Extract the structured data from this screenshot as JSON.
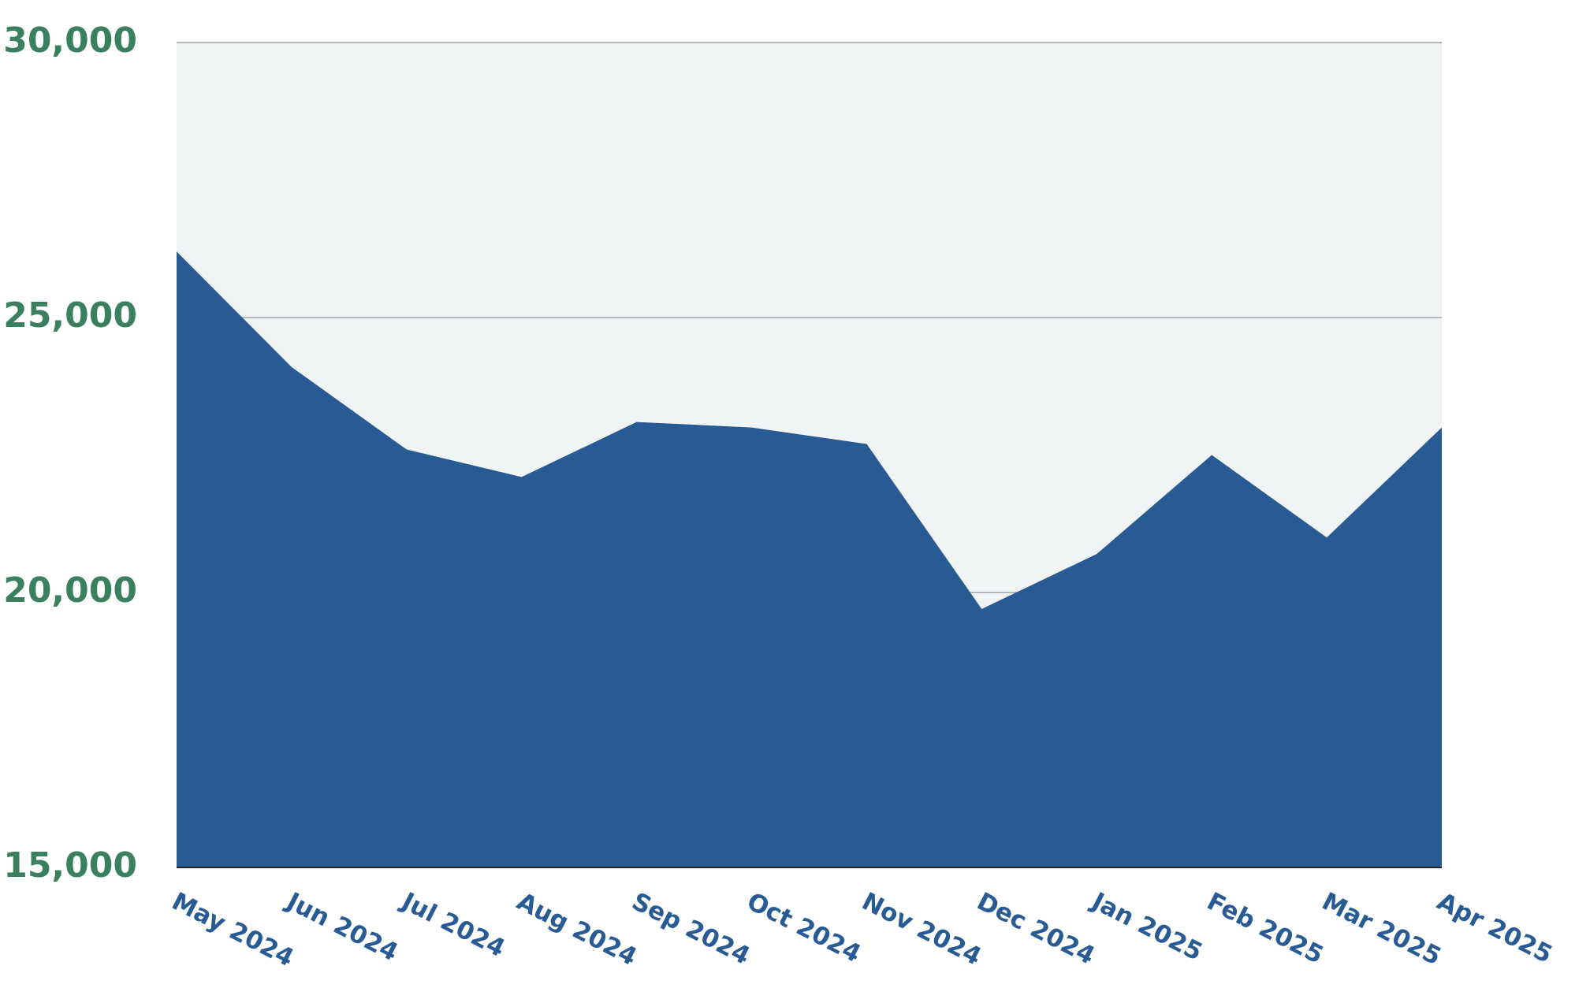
{
  "chart_data": {
    "type": "area",
    "categories": [
      "May 2024",
      "Jun 2024",
      "Jul 2024",
      "Aug 2024",
      "Sep 2024",
      "Oct 2024",
      "Nov 2024",
      "Dec 2024",
      "Jan 2025",
      "Feb 2025",
      "Mar 2025",
      "Apr 2025"
    ],
    "values": [
      26200,
      24100,
      22600,
      22100,
      23100,
      23000,
      22700,
      19700,
      20700,
      22500,
      21000,
      23000
    ],
    "color": "#285b94",
    "ylim": [
      15000,
      30000
    ],
    "yticks": [
      {
        "value": 15000,
        "label": "15,000"
      },
      {
        "value": 20000,
        "label": "20,000"
      },
      {
        "value": 25000,
        "label": "25,000"
      },
      {
        "value": 30000,
        "label": "30,000"
      }
    ],
    "grid": true
  }
}
